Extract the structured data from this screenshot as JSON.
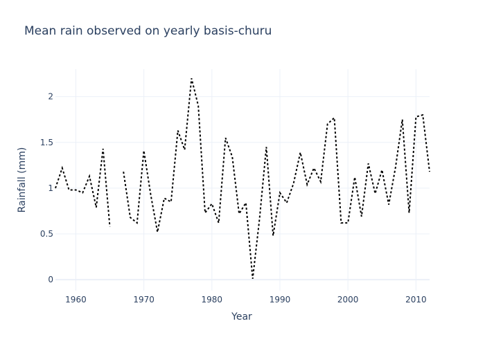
{
  "chart_data": {
    "type": "line",
    "title": "Mean rain observed on yearly basis-churu",
    "xlabel": "Year",
    "ylabel": "Rainfall (mm)",
    "xlim": [
      1957,
      2012
    ],
    "ylim": [
      -0.12,
      2.3
    ],
    "xticks": [
      1960,
      1970,
      1980,
      1990,
      2000,
      2010
    ],
    "yticks": [
      0,
      0.5,
      1,
      1.5,
      2
    ],
    "grid": true,
    "legend": "none",
    "line_style": "dotted",
    "line_color": "#000000",
    "series": [
      {
        "x": [
          1957,
          1958,
          1959,
          1960,
          1961,
          1962,
          1963,
          1964,
          1965,
          1966,
          1967,
          1968,
          1969,
          1970,
          1971,
          1972,
          1973,
          1974,
          1975,
          1976,
          1977,
          1978,
          1979,
          1980,
          1981,
          1982,
          1983,
          1984,
          1985,
          1986,
          1987,
          1988,
          1989,
          1990,
          1991,
          1992,
          1993,
          1994,
          1995,
          1996,
          1997,
          1998,
          1999,
          2000,
          2001,
          2002,
          2003,
          2004,
          2005,
          2006,
          2007,
          2008,
          2009,
          2010,
          2011,
          2012
        ],
        "y": [
          1.0,
          1.22,
          0.98,
          0.98,
          0.95,
          1.13,
          0.79,
          1.43,
          0.58,
          null,
          1.18,
          0.68,
          0.62,
          1.41,
          0.93,
          0.52,
          0.89,
          0.85,
          1.63,
          1.42,
          2.2,
          1.9,
          0.73,
          0.83,
          0.62,
          1.55,
          1.34,
          0.72,
          0.84,
          0.01,
          0.66,
          1.45,
          0.48,
          0.95,
          0.84,
          1.05,
          1.39,
          1.04,
          1.22,
          1.07,
          1.7,
          1.77,
          0.62,
          0.62,
          1.12,
          0.69,
          1.27,
          0.94,
          1.2,
          0.82,
          1.23,
          1.75,
          0.73,
          1.78,
          1.8,
          1.18
        ]
      }
    ]
  }
}
